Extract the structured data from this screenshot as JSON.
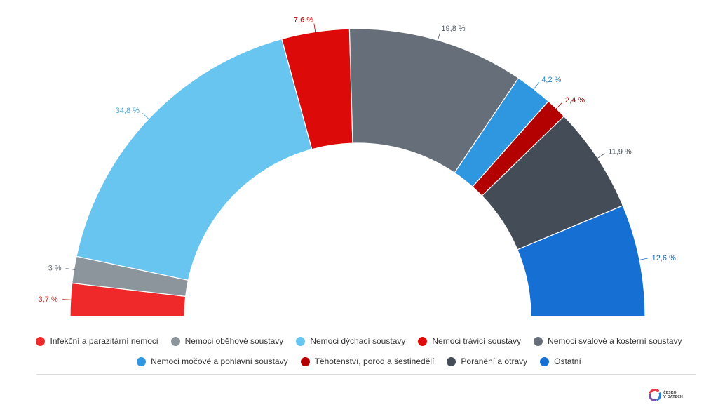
{
  "chart_data": {
    "type": "pie",
    "subtype": "semicircle-donut",
    "series": [
      {
        "name": "Infekční a parazitární nemoci",
        "value": 3.7,
        "label": "3,7 %",
        "color": "#ef2929",
        "label_color": "#c0392b"
      },
      {
        "name": "Nemoci oběhové soustavy",
        "value": 3.0,
        "label": "3 %",
        "color": "#8c949c",
        "label_color": "#6b7280"
      },
      {
        "name": "Nemoci dýchací soustavy",
        "value": 34.8,
        "label": "34,8 %",
        "color": "#67c5f0",
        "label_color": "#4aa9d9"
      },
      {
        "name": "Nemoci trávicí soustavy",
        "value": 7.6,
        "label": "7,6 %",
        "color": "#dd0a0a",
        "label_color": "#b00000"
      },
      {
        "name": "Nemoci svalové a kosterní soustavy",
        "value": 19.8,
        "label": "19,8 %",
        "color": "#666e7a",
        "label_color": "#555c66"
      },
      {
        "name": "Nemoci močové a pohlavní soustavy",
        "value": 4.2,
        "label": "4,2 %",
        "color": "#2f96e0",
        "label_color": "#2b8ad1"
      },
      {
        "name": "Těhotenství, porod a šestinedělí",
        "value": 2.4,
        "label": "2,4 %",
        "color": "#b30000",
        "label_color": "#a00000"
      },
      {
        "name": "Poranění a otravy",
        "value": 11.9,
        "label": "11,9 %",
        "color": "#444c57",
        "label_color": "#444c57"
      },
      {
        "name": "Ostatní",
        "value": 12.6,
        "label": "12,6 %",
        "color": "#1670d4",
        "label_color": "#1a66c2"
      }
    ],
    "legend_position": "bottom"
  },
  "logo": {
    "line1": "ČESKO",
    "line2": "V DATECH",
    "colors": [
      "#e63946",
      "#7b4fa0",
      "#2a7fd4"
    ]
  }
}
